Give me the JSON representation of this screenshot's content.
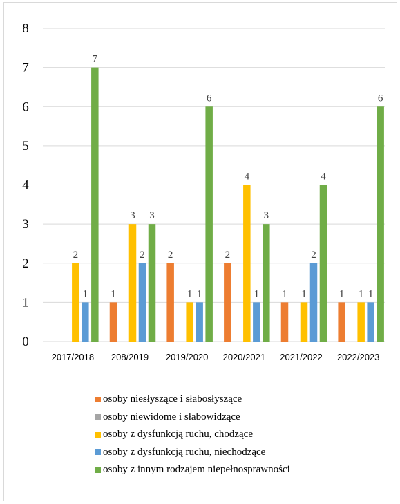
{
  "chart_data": {
    "type": "bar",
    "categories": [
      "2017/2018",
      "208/2019",
      "2019/2020",
      "2020/2021",
      "2021/2022",
      "2022/2023"
    ],
    "y_ticks": [
      "0",
      "1",
      "2",
      "3",
      "4",
      "5",
      "6",
      "7",
      "8"
    ],
    "ylim": [
      0,
      8
    ],
    "grid": true,
    "legend_position": "bottom",
    "series": [
      {
        "name": "osoby niesłyszące i słabosłyszące",
        "color": "#ed7d31",
        "values": [
          null,
          1,
          2,
          2,
          1,
          1
        ]
      },
      {
        "name": "osoby niewidome i słabowidzące",
        "color": "#a5a5a5",
        "values": [
          null,
          null,
          null,
          null,
          null,
          null
        ]
      },
      {
        "name": "osoby z dysfunkcją ruchu, chodzące",
        "color": "#ffc000",
        "values": [
          2,
          3,
          1,
          4,
          1,
          1
        ]
      },
      {
        "name": "osoby z dysfunkcją ruchu, niechodzące",
        "color": "#5b9bd5",
        "values": [
          1,
          2,
          1,
          1,
          2,
          1
        ]
      },
      {
        "name": "osoby z innym rodzajem niepełnosprawności",
        "color": "#70ad47",
        "values": [
          7,
          3,
          6,
          3,
          4,
          6
        ]
      }
    ]
  }
}
